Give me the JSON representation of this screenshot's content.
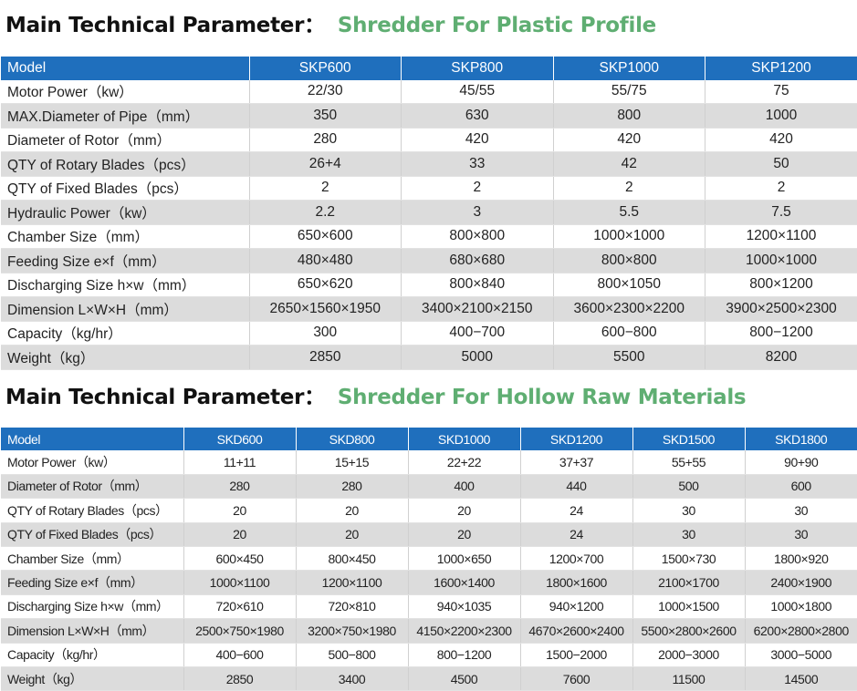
{
  "section1": {
    "title": "Main Technical Parameter：",
    "subtitle": "Shredder For Plastic Profile",
    "header": [
      "Model",
      "SKP600",
      "SKP800",
      "SKP1000",
      "SKP1200"
    ],
    "rows": [
      [
        "Motor Power（kw）",
        "22/30",
        "45/55",
        "55/75",
        "75"
      ],
      [
        "MAX.Diameter of Pipe（mm）",
        "350",
        "630",
        "800",
        "1000"
      ],
      [
        "Diameter of Rotor（mm）",
        "280",
        "420",
        "420",
        "420"
      ],
      [
        "QTY of Rotary Blades（pcs）",
        "26+4",
        "33",
        "42",
        "50"
      ],
      [
        "QTY of Fixed Blades（pcs）",
        "2",
        "2",
        "2",
        "2"
      ],
      [
        "Hydraulic Power（kw）",
        "2.2",
        "3",
        "5.5",
        "7.5"
      ],
      [
        "Chamber Size（mm）",
        "650×600",
        "800×800",
        "1000×1000",
        "1200×1100"
      ],
      [
        "Feeding Size e×f（mm）",
        "480×480",
        "680×680",
        "800×800",
        "1000×1000"
      ],
      [
        "Discharging Size h×w（mm）",
        "650×620",
        "800×840",
        "800×1050",
        "800×1200"
      ],
      [
        "Dimension L×W×H（mm）",
        "2650×1560×1950",
        "3400×2100×2150",
        "3600×2300×2200",
        "3900×2500×2300"
      ],
      [
        "Capacity（kg/hr）",
        "300",
        "400−700",
        "600−800",
        "800−1200"
      ],
      [
        "Weight（kg）",
        "2850",
        "5000",
        "5500",
        "8200"
      ]
    ]
  },
  "section2": {
    "title": "Main Technical Parameter：",
    "subtitle": "Shredder For Hollow Raw Materials",
    "header": [
      "Model",
      "SKD600",
      "SKD800",
      "SKD1000",
      "SKD1200",
      "SKD1500",
      "SKD1800"
    ],
    "rows": [
      [
        "Motor Power（kw）",
        "11+11",
        "15+15",
        "22+22",
        "37+37",
        "55+55",
        "90+90"
      ],
      [
        "Diameter of Rotor（mm）",
        "280",
        "280",
        "400",
        "440",
        "500",
        "600"
      ],
      [
        "QTY of Rotary Blades（pcs）",
        "20",
        "20",
        "20",
        "24",
        "30",
        "30"
      ],
      [
        "QTY of Fixed Blades（pcs）",
        "20",
        "20",
        "20",
        "24",
        "30",
        "30"
      ],
      [
        "Chamber Size（mm）",
        "600×450",
        "800×450",
        "1000×650",
        "1200×700",
        "1500×730",
        "1800×920"
      ],
      [
        "Feeding Size e×f（mm）",
        "1000×1100",
        "1200×1100",
        "1600×1400",
        "1800×1600",
        "2100×1700",
        "2400×1900"
      ],
      [
        "Discharging Size h×w（mm）",
        "720×610",
        "720×810",
        "940×1035",
        "940×1200",
        "1000×1500",
        "1000×1800"
      ],
      [
        "Dimension L×W×H（mm）",
        "2500×750×1980",
        "3200×750×1980",
        "4150×2200×2300",
        "4670×2600×2400",
        "5500×2800×2600",
        "6200×2800×2800"
      ],
      [
        "Capacity（kg/hr）",
        "400−600",
        "500−800",
        "800−1200",
        "1500−2000",
        "2000−3000",
        "3000−5000"
      ],
      [
        "Weight（kg）",
        "2850",
        "3400",
        "4500",
        "7600",
        "11500",
        "14500"
      ]
    ]
  },
  "colors": {
    "header_bg": "#1f6fbd",
    "header_text": "#ffffff",
    "subtitle": "#5fae72",
    "row_alt": "#dcdcdc"
  }
}
